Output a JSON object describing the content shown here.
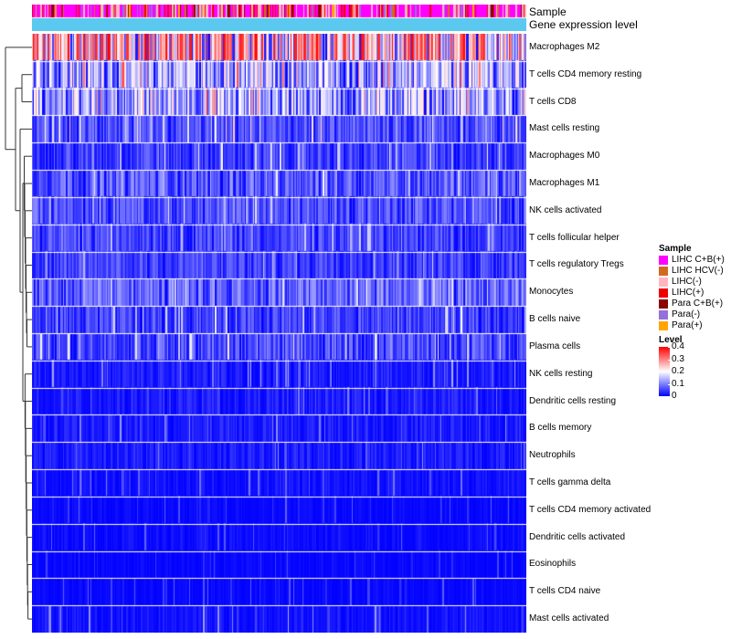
{
  "annotation_labels": {
    "sample": "Sample",
    "gene_expression_level": "Gene expression level"
  },
  "legend": {
    "sample_title": "Sample",
    "sample_items": [
      {
        "label": "LIHC C+B(+)",
        "color": "#ff00ff"
      },
      {
        "label": "LIHC HCV(-)",
        "color": "#d2691e"
      },
      {
        "label": "LIHC(-)",
        "color": "#ffb6c1"
      },
      {
        "label": "LIHC(+)",
        "color": "#ee0000"
      },
      {
        "label": "Para C+B(+)",
        "color": "#8b0000"
      },
      {
        "label": "Para(-)",
        "color": "#9370db"
      },
      {
        "label": "Para(+)",
        "color": "#ffa500"
      }
    ],
    "level_title": "Level",
    "level_ticks": [
      "0.4",
      "0.3",
      "0.2",
      "0.1",
      "0"
    ]
  },
  "colors": {
    "low": "#0000ff",
    "mid": "#ffffff",
    "high": "#ff0000",
    "expression_bar": "#5bc8f0"
  },
  "chart_data": {
    "type": "heatmap",
    "title": "",
    "value_range": [
      0,
      0.4
    ],
    "columns_approx": 380,
    "rows": [
      "Macrophages M2",
      "T cells CD4 memory resting",
      "T cells CD8",
      "Mast cells resting",
      "Macrophages M0",
      "Macrophages M1",
      "NK cells activated",
      "T cells follicular helper",
      "T cells regulatory  Tregs",
      "Monocytes",
      "B cells naive",
      "Plasma cells",
      "NK cells resting",
      "Dendritic cells resting",
      "B cells memory",
      "Neutrophils",
      "T cells gamma delta",
      "T cells CD4 memory activated",
      "Dendritic cells activated",
      "Eosinophils",
      "T cells CD4 naive",
      "Mast cells activated"
    ],
    "row_mean_levels": [
      0.27,
      0.16,
      0.15,
      0.07,
      0.06,
      0.08,
      0.07,
      0.06,
      0.06,
      0.09,
      0.06,
      0.07,
      0.03,
      0.03,
      0.03,
      0.03,
      0.02,
      0.01,
      0.015,
      0.01,
      0.01,
      0.02
    ],
    "row_max_levels": [
      0.4,
      0.35,
      0.32,
      0.25,
      0.22,
      0.2,
      0.2,
      0.18,
      0.18,
      0.2,
      0.2,
      0.22,
      0.15,
      0.12,
      0.12,
      0.12,
      0.1,
      0.08,
      0.08,
      0.06,
      0.08,
      0.15
    ],
    "row_variability": [
      0.5,
      0.5,
      0.5,
      0.6,
      0.6,
      0.45,
      0.45,
      0.45,
      0.45,
      0.45,
      0.6,
      0.6,
      0.8,
      0.8,
      0.8,
      0.8,
      0.9,
      0.9,
      0.9,
      0.9,
      0.9,
      0.85
    ],
    "legend_title_sample": "Sample",
    "legend_title_level": "Level"
  }
}
